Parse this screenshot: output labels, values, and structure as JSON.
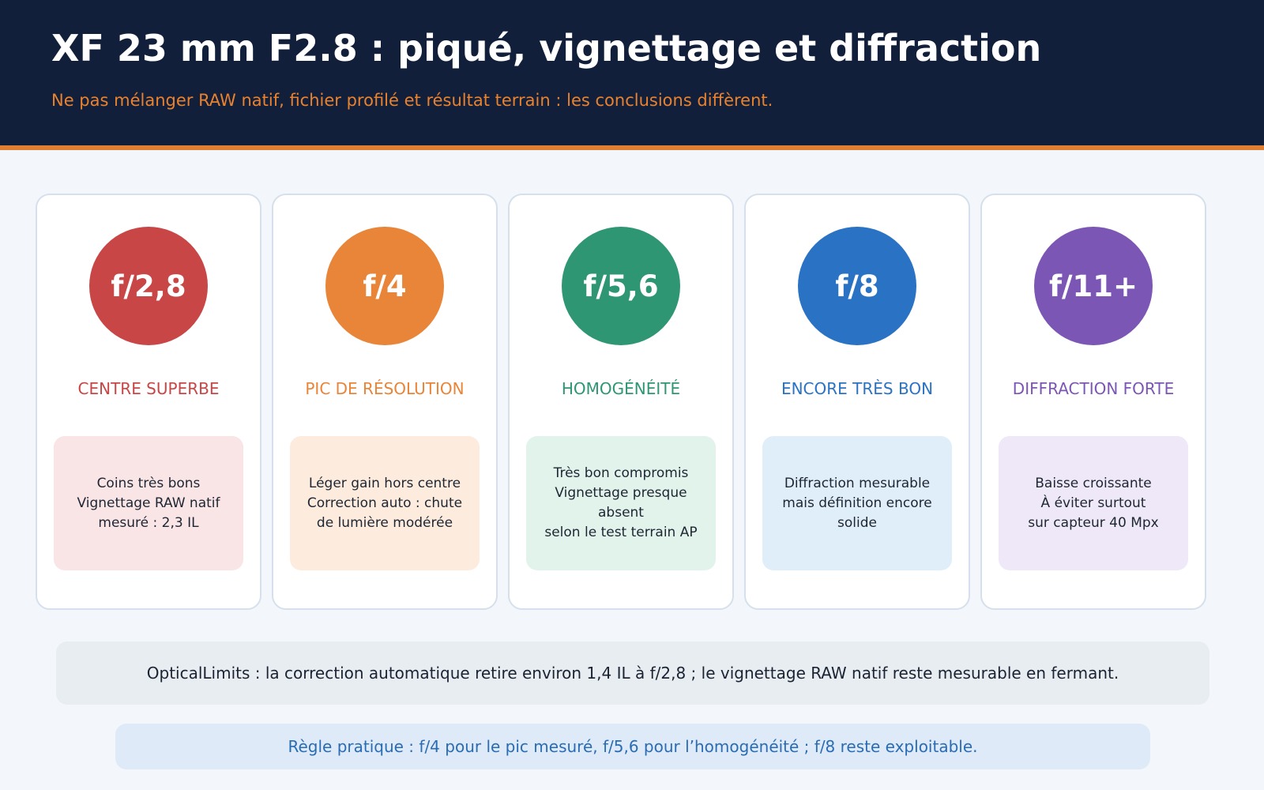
{
  "header": {
    "title": "XF 23 mm F2.8 : piqué, vignettage et diffraction",
    "subtitle": "Ne pas mélanger RAW natif, fichier profilé et résultat terrain : les conclusions diffèrent."
  },
  "colors": {
    "header_bg": "#121f3a",
    "accent": "#e07f31"
  },
  "cards": [
    {
      "aperture": "f/2,8",
      "title": "CENTRE SUPERBE",
      "color": "#c94646",
      "note_bg": "#f9e4e6",
      "note_lines": [
        "Coins très bons",
        "Vignettage RAW natif",
        "mesuré : 2,3 IL"
      ]
    },
    {
      "aperture": "f/4",
      "title": "PIC DE RÉSOLUTION",
      "color": "#e88538",
      "note_bg": "#fdecde",
      "note_lines": [
        "Léger gain hors centre",
        "Correction auto : chute",
        "de lumière modérée"
      ]
    },
    {
      "aperture": "f/5,6",
      "title": "HOMOGÉNÉITÉ",
      "color": "#2e9672",
      "note_bg": "#e2f3ec",
      "note_lines": [
        "Très bon compromis",
        "Vignettage presque",
        "absent",
        "selon le test terrain AP"
      ]
    },
    {
      "aperture": "f/8",
      "title": "ENCORE TRÈS BON",
      "color": "#2a72c4",
      "note_bg": "#e0eef9",
      "note_lines": [
        "Diffraction mesurable",
        "mais définition encore",
        "solide"
      ]
    },
    {
      "aperture": "f/11+",
      "title": "DIFFRACTION FORTE",
      "color": "#7c56b5",
      "note_bg": "#eee8f8",
      "note_lines": [
        "Baisse croissante",
        "À éviter surtout",
        "sur capteur 40 Mpx"
      ]
    }
  ],
  "banner": "OpticalLimits : la correction automatique retire environ 1,4 IL à f/2,8 ; le vignettage RAW natif reste mesurable en fermant.",
  "tip": "Règle pratique : f/4 pour le pic mesuré, f/5,6 pour l’homogénéité ; f/8 reste exploitable."
}
